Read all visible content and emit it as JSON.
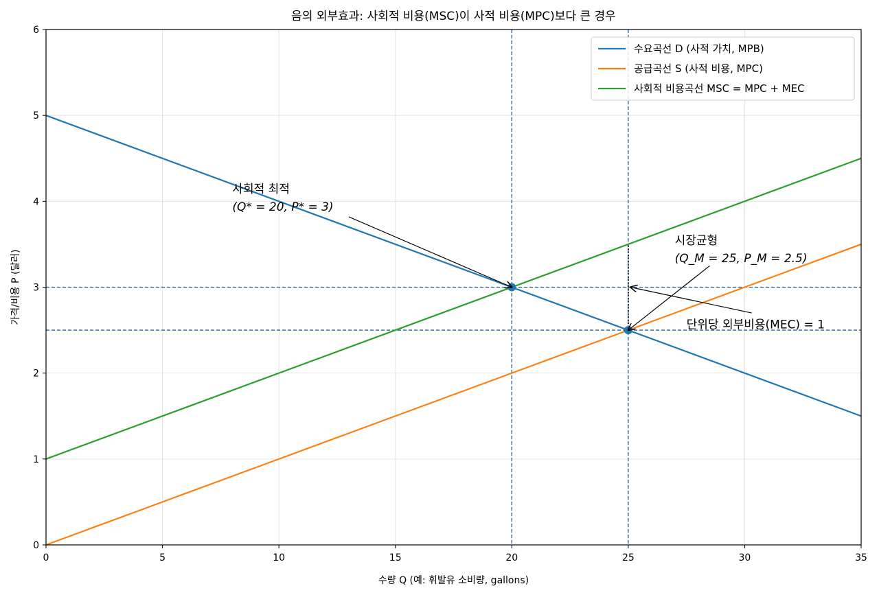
{
  "chart_data": {
    "type": "line",
    "title": "음의 외부효과: 사회적 비용(MSC)이 사적 비용(MPC)보다 큰 경우",
    "xlabel": "수량 Q (예: 휘발유 소비량, gallons)",
    "ylabel": "가격/비용 P (달러)",
    "xlim": [
      0,
      35
    ],
    "ylim": [
      0,
      6
    ],
    "xticks": [
      0,
      5,
      10,
      15,
      20,
      25,
      30,
      35
    ],
    "yticks": [
      0,
      1,
      2,
      3,
      4,
      5,
      6
    ],
    "grid": true,
    "legend_position": "top-right",
    "series": [
      {
        "name": "수요곡선 D (사적 가치, MPB)",
        "color": "#1f77b4",
        "x": [
          0,
          35
        ],
        "y": [
          5,
          1.5
        ]
      },
      {
        "name": "공급곡선 S (사적 비용, MPC)",
        "color": "#ff7f0e",
        "x": [
          0,
          35
        ],
        "y": [
          0,
          3.5
        ]
      },
      {
        "name": "사회적 비용곡선 MSC = MPC + MEC",
        "color": "#2ca02c",
        "x": [
          0,
          35
        ],
        "y": [
          1,
          4.5
        ]
      }
    ],
    "reference_lines": {
      "vertical": [
        20,
        25
      ],
      "horizontal": [
        3,
        2.5
      ],
      "color": "#1f5f9a"
    },
    "points": [
      {
        "x": 20,
        "y": 3
      },
      {
        "x": 25,
        "y": 2.5
      }
    ],
    "mec_segment": {
      "x": 25,
      "y_from": 2.5,
      "y_to": 3.5
    },
    "annotations": [
      {
        "label": "social-optimum",
        "line1": "사회적 최적",
        "line2": "(Q* = 20,  P* = 3)",
        "text_x": 8,
        "text_y": 4.1,
        "arrow_from": [
          13,
          3.82
        ],
        "arrow_to": [
          20,
          3
        ]
      },
      {
        "label": "market-equilibrium",
        "line1": "시장균형",
        "line2": "(Q_M = 25,  P_M = 2.5)",
        "text_x": 27,
        "text_y": 3.5,
        "arrow_from": [
          28.5,
          3.25
        ],
        "arrow_to": [
          25,
          2.5
        ]
      },
      {
        "label": "mec",
        "line1": "단위당 외부비용(MEC) = 1",
        "line2": "",
        "text_x": 27.5,
        "text_y": 2.52,
        "arrow_from": [
          30.3,
          2.7
        ],
        "arrow_to": [
          25.1,
          3
        ]
      }
    ]
  }
}
